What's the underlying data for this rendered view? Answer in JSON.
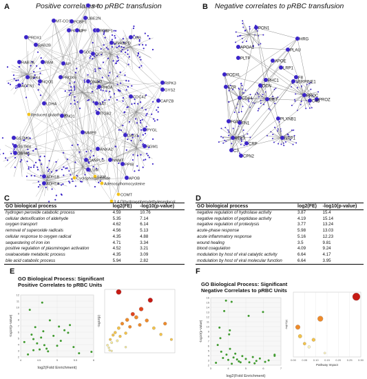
{
  "panels": {
    "A": {
      "letter": "A",
      "title": "Positive correlates to pRBC transfusion"
    },
    "B": {
      "letter": "B",
      "title": "Negative correlates to pRBC transfusion"
    },
    "C": {
      "letter": "C"
    },
    "D": {
      "letter": "D"
    },
    "E": {
      "letter": "E",
      "title": "GO Biological Process: Significant Positive Correlates to pRBC Units"
    },
    "F": {
      "letter": "F",
      "title": "GO Biological Process: Significant Negative Correlates to pRBC Units"
    }
  },
  "network_a": {
    "labels": [
      "UBA1",
      "MT-CO1",
      "PCBP1",
      "UBE2N",
      "PRDX1",
      "PARK7",
      "UPF",
      "PRDX",
      "PCBP1",
      "HNRNPD",
      "UBB",
      "RAB2B",
      "SOD1",
      "CCT",
      "RAB7A",
      "PAM",
      "AP",
      "PROX6",
      "GPX4",
      "NQO1",
      "ACTN1",
      "RIPK3",
      "GYS2",
      "CAPZB",
      "CDC42",
      "CAT",
      "LDHA",
      "GNAI2",
      "RHOA",
      "Reduced glutathione",
      "ENO1",
      "ITGB2",
      "PYGL",
      "GSTM3",
      "GSTM4",
      "GSTA1",
      "MMP9",
      "ANXA2",
      "DAG1",
      "PGM1",
      "CANPLG",
      "NNMT",
      "PPIB",
      "LUM",
      "SAM",
      "APOB",
      "Adenosylhomocysteine",
      "Cyclophosphamide",
      "ADH1B",
      "ADH1A",
      "COMT",
      "3,4-Dihydroxyphenylethyleneglycol"
    ],
    "colors": {
      "node": "#3b24c8",
      "edge": "#8a8a8a",
      "metabolite": "#f2c21a",
      "halo": "#9a8fd6"
    }
  },
  "network_b": {
    "labels": [
      "PON1",
      "HRG",
      "APOA1",
      "PLAU",
      "PLTP",
      "APOE",
      "LRP1",
      "PODXL",
      "F8",
      "EZR",
      "SERPINE1",
      "PHC1",
      "DCN",
      "PROC",
      "PROZ",
      "C4B",
      "CD44",
      "MET",
      "FGFR",
      "FN1",
      "PLXNB1",
      "PTX3",
      "CRP",
      "NRP1",
      "C3",
      "CPN2"
    ]
  },
  "table_c": {
    "headers": [
      "GO biological process",
      "log2(FE)",
      "-log10(p-value)"
    ],
    "rows": [
      [
        "hydrogen peroxide catabolic process",
        "4.59",
        "10.76"
      ],
      [
        "cellular detoxification of aldehyde",
        "5.35",
        "7.14"
      ],
      [
        "oxygen transport",
        "4.62",
        "6.14"
      ],
      [
        "removal of superoxide radicals",
        "4.56",
        "5.13"
      ],
      [
        "cellular response to oxygen radical",
        "4.35",
        "4.88"
      ],
      [
        "sequestering of iron ion",
        "4.71",
        "3.34"
      ],
      [
        "positive regulation of plasminogen activation",
        "4.52",
        "3.21"
      ],
      [
        "oxaloacetate metabolic process",
        "4.35",
        "3.09"
      ],
      [
        "bile acid catabolic process",
        "5.94",
        "2.82"
      ]
    ]
  },
  "table_d": {
    "headers": [
      "GO biological process",
      "log2(FE)",
      "-log10(p-value)"
    ],
    "rows": [
      [
        "negative regulation of hydrolase activity",
        "3.87",
        "15.4"
      ],
      [
        "negative regulation of peptidase activity",
        "4.19",
        "15.14"
      ],
      [
        "negative regulation of proteolysis",
        "3.77",
        "13.24"
      ],
      [
        "acute-phase response",
        "5.98",
        "13.03"
      ],
      [
        "acute inflammatory response",
        "5.16",
        "12.23"
      ],
      [
        "wound healing",
        "3.5",
        "9.81"
      ],
      [
        "blood coagulation",
        "4.09",
        "9.24"
      ],
      [
        "modulation by host of viral catalytic activity",
        "6.64",
        "4.17"
      ],
      [
        "modulation by host of viral molecular function",
        "6.64",
        "3.95"
      ]
    ]
  },
  "chart_data": [
    {
      "type": "scatter",
      "title": "GO Biological Process: Significant Positive Correlates to pRBC Units",
      "xlabel": "log2(Fold Enrichment)",
      "ylabel": "-log10(p-Value)",
      "xlim": [
        4,
        6
      ],
      "ylim": [
        2,
        12
      ],
      "xticks": [
        "4",
        "4.5",
        "5",
        "5.5",
        "6"
      ],
      "yticks": [
        "2",
        "3",
        "4",
        "5",
        "6",
        "7",
        "8",
        "9",
        "10",
        "11",
        "12"
      ],
      "color": "#3f9a2e",
      "points": [
        [
          4.59,
          10.76
        ],
        [
          5.35,
          7.14
        ],
        [
          4.62,
          6.14
        ],
        [
          4.56,
          5.13
        ],
        [
          4.35,
          4.88
        ],
        [
          4.71,
          3.34
        ],
        [
          4.52,
          3.21
        ],
        [
          4.35,
          3.09
        ],
        [
          5.94,
          2.82
        ],
        [
          4.25,
          9.6
        ],
        [
          4.3,
          5.6
        ],
        [
          4.4,
          6.8
        ],
        [
          4.45,
          4.2
        ],
        [
          4.8,
          7.9
        ],
        [
          4.9,
          5.4
        ],
        [
          5.0,
          3.8
        ],
        [
          5.1,
          4.6
        ],
        [
          5.2,
          6.3
        ],
        [
          5.3,
          5.9
        ],
        [
          5.45,
          3.6
        ],
        [
          5.6,
          2.6
        ],
        [
          4.2,
          2.4
        ],
        [
          4.65,
          3.9
        ],
        [
          4.75,
          2.9
        ],
        [
          4.1,
          4.4
        ],
        [
          5.05,
          6.9
        ]
      ]
    },
    {
      "type": "scatter",
      "title": "",
      "xlabel": "",
      "ylabel": "-log10(p)",
      "xlim": [
        0,
        1
      ],
      "ylim": [
        0,
        10
      ],
      "points": [
        [
          0.04,
          1.2
        ],
        [
          0.06,
          0.8
        ],
        [
          0.08,
          2.1
        ],
        [
          0.1,
          1.6
        ],
        [
          0.12,
          2.8
        ],
        [
          0.15,
          3.2
        ],
        [
          0.18,
          1.9
        ],
        [
          0.2,
          3.9
        ],
        [
          0.22,
          2.6
        ],
        [
          0.25,
          4.6
        ],
        [
          0.3,
          3.1
        ],
        [
          0.32,
          5.2
        ],
        [
          0.36,
          4.1
        ],
        [
          0.4,
          6.1
        ],
        [
          0.45,
          5.6
        ],
        [
          0.5,
          4.4
        ],
        [
          0.52,
          6.9
        ],
        [
          0.6,
          5.1
        ],
        [
          0.65,
          8.3
        ],
        [
          0.7,
          3.9
        ],
        [
          0.8,
          2.9
        ],
        [
          0.86,
          4.6
        ],
        [
          0.95,
          2.1
        ],
        [
          0.2,
          9.6
        ],
        [
          0.3,
          0.9
        ],
        [
          0.07,
          0.4
        ],
        [
          0.1,
          0.3
        ]
      ],
      "scale_colors": [
        "#f6ea9a",
        "#f3c24a",
        "#ee8a2a",
        "#e0441e",
        "#c61a14"
      ]
    },
    {
      "type": "scatter",
      "title": "GO Biological Process: Significant Negative Correlates to pRBC Units",
      "xlabel": "log2(Fold Enrichment)",
      "ylabel": "-log10(p-Value)",
      "xlim": [
        3,
        7
      ],
      "ylim": [
        2,
        16
      ],
      "xticks": [
        "3",
        "4",
        "5",
        "6",
        "7"
      ],
      "yticks": [
        "2",
        "3",
        "4",
        "5",
        "6",
        "7",
        "8",
        "9",
        "10",
        "11",
        "12",
        "13",
        "14",
        "15",
        "16"
      ],
      "color": "#3f9a2e",
      "points": [
        [
          3.87,
          15.4
        ],
        [
          4.19,
          15.14
        ],
        [
          3.77,
          13.24
        ],
        [
          5.98,
          13.03
        ],
        [
          5.16,
          12.23
        ],
        [
          3.5,
          9.81
        ],
        [
          4.09,
          9.24
        ],
        [
          6.64,
          4.17
        ],
        [
          6.64,
          3.95
        ],
        [
          3.4,
          6.2
        ],
        [
          3.6,
          4.8
        ],
        [
          3.7,
          3.5
        ],
        [
          3.9,
          4.2
        ],
        [
          4.0,
          3.1
        ],
        [
          4.1,
          5.4
        ],
        [
          4.3,
          3.6
        ],
        [
          4.4,
          4.4
        ],
        [
          4.5,
          3.2
        ],
        [
          4.6,
          2.8
        ],
        [
          4.8,
          3.9
        ],
        [
          5.0,
          3.3
        ],
        [
          5.2,
          2.6
        ],
        [
          5.4,
          3.7
        ],
        [
          5.6,
          2.9
        ],
        [
          5.8,
          3.4
        ],
        [
          3.3,
          2.5
        ],
        [
          4.2,
          2.3
        ],
        [
          4.7,
          2.6
        ],
        [
          5.5,
          2.4
        ],
        [
          6.1,
          2.7
        ],
        [
          6.3,
          3.0
        ],
        [
          3.55,
          7.6
        ],
        [
          4.05,
          8.4
        ]
      ]
    },
    {
      "type": "scatter",
      "title": "",
      "xlabel": "Pathway Impact",
      "ylabel": "-log10(p)",
      "xlim": [
        0,
        0.3
      ],
      "ylim": [
        0,
        20
      ],
      "xticks": [
        "0.00",
        "0.05",
        "0.10",
        "0.15",
        "0.20",
        "0.25",
        "0.30"
      ],
      "points": [
        [
          0.02,
          9.2
        ],
        [
          0.03,
          6.4
        ],
        [
          0.05,
          4.1
        ],
        [
          0.07,
          3.1
        ],
        [
          0.09,
          5.3
        ],
        [
          0.12,
          11.8
        ],
        [
          0.28,
          18.6
        ],
        [
          0.14,
          1.2
        ]
      ],
      "scale_colors": [
        "#fff6c0",
        "#f3c24a",
        "#ee8a2a",
        "#e0441e",
        "#c61a14"
      ]
    }
  ]
}
